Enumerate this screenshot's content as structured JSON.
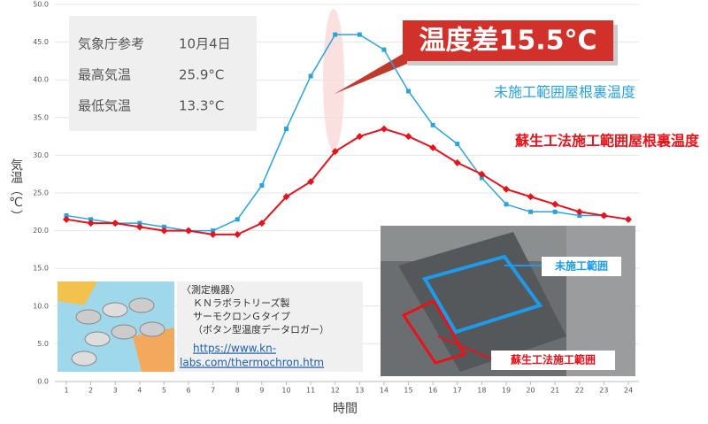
{
  "chart_data": {
    "type": "line",
    "xlabel": "時間",
    "ylabel": "気温（℃）",
    "categories": [
      "1",
      "2",
      "3",
      "4",
      "5",
      "6",
      "7",
      "8",
      "9",
      "10",
      "11",
      "12",
      "13",
      "14",
      "15",
      "16",
      "17",
      "18",
      "19",
      "20",
      "21",
      "22",
      "23",
      "24"
    ],
    "ylim": [
      0,
      50
    ],
    "yticks": [
      {
        "value": 0,
        "label": "0.0"
      },
      {
        "value": 5,
        "label": "5.0"
      },
      {
        "value": 10,
        "label": "10.0"
      },
      {
        "value": 15,
        "label": "15.0"
      },
      {
        "value": 20,
        "label": "20.0"
      },
      {
        "value": 25,
        "label": "25.0"
      },
      {
        "value": 30,
        "label": "30.0"
      },
      {
        "value": 35,
        "label": "35.0"
      },
      {
        "value": 40,
        "label": "40.0"
      },
      {
        "value": 45,
        "label": "45.0"
      },
      {
        "value": 50,
        "label": "50.0"
      }
    ],
    "grid": true,
    "series": [
      {
        "name": "未施工範囲屋根裏温度",
        "color": "#29a3e0",
        "marker": "square",
        "values": [
          22.0,
          21.5,
          21.0,
          21.0,
          20.5,
          20.0,
          20.0,
          21.5,
          26.0,
          33.5,
          40.5,
          46.0,
          46.0,
          44.0,
          38.5,
          34.0,
          31.5,
          27.0,
          23.5,
          22.5,
          22.5,
          22.0,
          22.0,
          21.5
        ]
      },
      {
        "name": "蘇生工法施工範囲屋根裏温度",
        "color": "#e8121a",
        "marker": "diamond",
        "values": [
          21.5,
          21.0,
          21.0,
          20.5,
          20.0,
          20.0,
          19.5,
          19.5,
          21.0,
          24.5,
          26.5,
          30.5,
          32.5,
          33.5,
          32.5,
          31.0,
          29.0,
          27.5,
          25.5,
          24.5,
          23.5,
          22.5,
          22.0,
          21.5
        ]
      }
    ],
    "annotations": {
      "callout": "温度差15.5°C",
      "info": [
        [
          "気象庁参考",
          "10月4日"
        ],
        [
          "最高気温",
          "25.9°C"
        ],
        [
          "最低気温",
          "13.3°C"
        ]
      ],
      "device": [
        "〈測定機器〉",
        "ＫＮラボラトリーズ製",
        "サーモクロンＧタイプ",
        "（ボタン型温度データロガー）"
      ],
      "link": [
        "https://www.kn-",
        "labs.com/thermochron.htm"
      ],
      "photo_labels": [
        "未施工範囲",
        "蘇生工法施工範囲"
      ]
    }
  }
}
